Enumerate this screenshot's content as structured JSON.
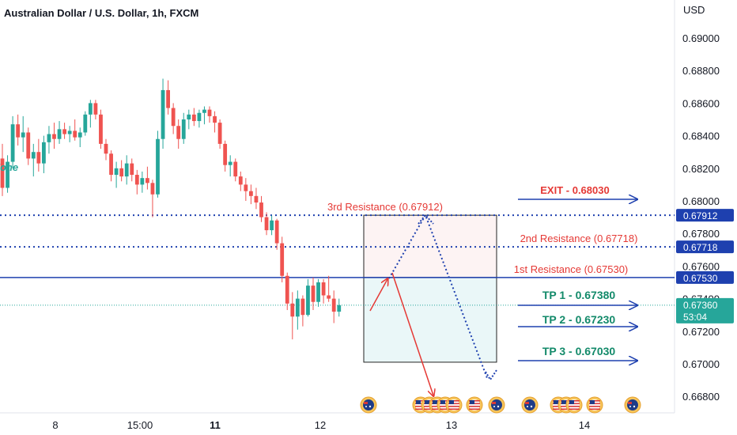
{
  "title": "Australian Dollar / U.S. Dollar, 1h, FXCM",
  "currency": "USD",
  "colors": {
    "up": "#26a69a",
    "down": "#ef5350",
    "resistance": "#1e40af",
    "annotation_red": "#e53935",
    "tp_green": "#138a6a",
    "price_badge": "#26a69a"
  },
  "chart_data": {
    "type": "candlestick",
    "title": "Australian Dollar / U.S. Dollar, 1h, FXCM",
    "ylim": [
      0.667,
      0.691
    ],
    "y_ticks": [
      "0.69000",
      "0.68800",
      "0.68600",
      "0.68400",
      "0.68200",
      "0.68000",
      "0.67800",
      "0.67600",
      "0.67400",
      "0.67200",
      "0.67000",
      "0.66800"
    ],
    "x_ticks": [
      "8",
      "15:00",
      "11",
      "12",
      "13",
      "14"
    ],
    "candles": [
      [
        0.6826,
        0.6835,
        0.6803,
        0.6808
      ],
      [
        0.6808,
        0.6828,
        0.6805,
        0.6824
      ],
      [
        0.6824,
        0.6852,
        0.682,
        0.6847
      ],
      [
        0.6847,
        0.6853,
        0.6834,
        0.6839
      ],
      [
        0.6839,
        0.6852,
        0.683,
        0.6842
      ],
      [
        0.6842,
        0.6845,
        0.6822,
        0.6826
      ],
      [
        0.6826,
        0.6835,
        0.6815,
        0.683
      ],
      [
        0.683,
        0.6838,
        0.6818,
        0.6823
      ],
      [
        0.6823,
        0.684,
        0.6817,
        0.6836
      ],
      [
        0.6836,
        0.6846,
        0.6829,
        0.6841
      ],
      [
        0.6841,
        0.6848,
        0.6832,
        0.6838
      ],
      [
        0.6838,
        0.6849,
        0.6835,
        0.6844
      ],
      [
        0.6844,
        0.6848,
        0.6838,
        0.6841
      ],
      [
        0.6841,
        0.6846,
        0.6836,
        0.6843
      ],
      [
        0.6843,
        0.685,
        0.6837,
        0.6839
      ],
      [
        0.6839,
        0.6845,
        0.6833,
        0.6842
      ],
      [
        0.6842,
        0.6855,
        0.684,
        0.6853
      ],
      [
        0.6853,
        0.6862,
        0.6845,
        0.686
      ],
      [
        0.686,
        0.6862,
        0.685,
        0.6853
      ],
      [
        0.6853,
        0.6856,
        0.6832,
        0.6835
      ],
      [
        0.6835,
        0.6838,
        0.6825,
        0.6829
      ],
      [
        0.6829,
        0.6831,
        0.6812,
        0.6816
      ],
      [
        0.6816,
        0.6824,
        0.6808,
        0.682
      ],
      [
        0.682,
        0.6825,
        0.6812,
        0.6815
      ],
      [
        0.6815,
        0.6828,
        0.681,
        0.6823
      ],
      [
        0.6823,
        0.6826,
        0.6812,
        0.6816
      ],
      [
        0.6816,
        0.6819,
        0.6804,
        0.681
      ],
      [
        0.681,
        0.6818,
        0.6805,
        0.6814
      ],
      [
        0.6814,
        0.6821,
        0.6807,
        0.6811
      ],
      [
        0.6811,
        0.6813,
        0.679,
        0.6804
      ],
      [
        0.6804,
        0.6843,
        0.6802,
        0.6838
      ],
      [
        0.6838,
        0.6875,
        0.6832,
        0.6868
      ],
      [
        0.6868,
        0.6874,
        0.6853,
        0.6857
      ],
      [
        0.6857,
        0.686,
        0.6841,
        0.6846
      ],
      [
        0.6846,
        0.685,
        0.6832,
        0.6838
      ],
      [
        0.6838,
        0.6854,
        0.6835,
        0.685
      ],
      [
        0.685,
        0.6856,
        0.6844,
        0.6853
      ],
      [
        0.6853,
        0.6857,
        0.6846,
        0.6849
      ],
      [
        0.6849,
        0.6856,
        0.6845,
        0.6854
      ],
      [
        0.6854,
        0.6858,
        0.6847,
        0.6856
      ],
      [
        0.6856,
        0.6858,
        0.6848,
        0.6852
      ],
      [
        0.6852,
        0.6855,
        0.6842,
        0.6848
      ],
      [
        0.6848,
        0.685,
        0.6832,
        0.6835
      ],
      [
        0.6835,
        0.6837,
        0.6818,
        0.6822
      ],
      [
        0.6822,
        0.6828,
        0.6815,
        0.6824
      ],
      [
        0.6824,
        0.6826,
        0.6812,
        0.6815
      ],
      [
        0.6815,
        0.6818,
        0.6806,
        0.681
      ],
      [
        0.681,
        0.6814,
        0.68,
        0.6806
      ],
      [
        0.6806,
        0.681,
        0.6798,
        0.6803
      ],
      [
        0.6803,
        0.6808,
        0.6795,
        0.6799
      ],
      [
        0.6799,
        0.6803,
        0.6787,
        0.679
      ],
      [
        0.679,
        0.6793,
        0.6779,
        0.6782
      ],
      [
        0.6782,
        0.6791,
        0.6779,
        0.6788
      ],
      [
        0.6788,
        0.6789,
        0.677,
        0.6774
      ],
      [
        0.6774,
        0.6778,
        0.675,
        0.6754
      ],
      [
        0.6754,
        0.6756,
        0.6733,
        0.6737
      ],
      [
        0.6737,
        0.6744,
        0.6715,
        0.6729
      ],
      [
        0.6729,
        0.6745,
        0.6721,
        0.674
      ],
      [
        0.674,
        0.6742,
        0.6723,
        0.673
      ],
      [
        0.673,
        0.6752,
        0.6729,
        0.6748
      ],
      [
        0.6748,
        0.6753,
        0.6733,
        0.6738
      ],
      [
        0.6738,
        0.6752,
        0.6735,
        0.675
      ],
      [
        0.675,
        0.6752,
        0.6737,
        0.6742
      ],
      [
        0.6742,
        0.6754,
        0.6738,
        0.674
      ],
      [
        0.674,
        0.6745,
        0.6725,
        0.6732
      ],
      [
        0.6732,
        0.674,
        0.6729,
        0.6736
      ]
    ],
    "current_price": "0.67360",
    "countdown": "53:04",
    "levels": [
      {
        "label": "3rd Resistance (0.67912)",
        "value": 0.67912,
        "badge": "0.67912",
        "style": "dotted"
      },
      {
        "label": "2nd Resistance (0.67718)",
        "value": 0.67718,
        "badge": "0.67718",
        "style": "dotted"
      },
      {
        "label": "1st Resistance (0.67530)",
        "value": 0.6753,
        "badge": "0.67530",
        "style": "solid"
      }
    ],
    "targets": {
      "exit": {
        "label": "EXIT - 0.68030",
        "value": 0.6803
      },
      "tp": [
        {
          "label": "TP 1 - 0.67380",
          "value": 0.6738
        },
        {
          "label": "TP 2 - 0.67230",
          "value": 0.6723
        },
        {
          "label": "TP 3 - 0.67030",
          "value": 0.6703
        }
      ]
    },
    "zones": {
      "upper": [
        0.6753,
        0.67912
      ],
      "lower": [
        0.6701,
        0.6753
      ]
    },
    "partial_label": "Zone"
  },
  "events": [
    {
      "flag": "au"
    },
    {
      "flag": "us"
    },
    {
      "flag": "us"
    },
    {
      "flag": "us"
    },
    {
      "flag": "us"
    },
    {
      "flag": "us"
    },
    {
      "flag": "us"
    },
    {
      "flag": "au"
    },
    {
      "flag": "au"
    },
    {
      "flag": "us"
    },
    {
      "flag": "us"
    },
    {
      "flag": "us"
    },
    {
      "flag": "us"
    },
    {
      "flag": "au"
    }
  ]
}
